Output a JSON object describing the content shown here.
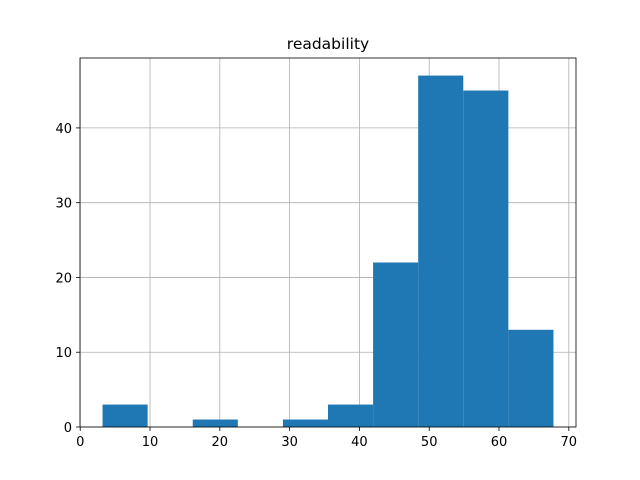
{
  "chart_data": {
    "type": "histogram",
    "title": "readability",
    "bins": [
      3.2,
      9.66,
      16.12,
      22.58,
      29.04,
      35.5,
      41.96,
      48.42,
      54.88,
      61.34,
      67.8
    ],
    "values": [
      3,
      0,
      1,
      0,
      1,
      3,
      22,
      47,
      45,
      13
    ],
    "color": "#1f77b4",
    "xlim": [
      -0.03,
      71.03
    ],
    "xticks": [
      0,
      10,
      20,
      30,
      40,
      50,
      60,
      70
    ],
    "ylim": [
      0,
      49.35
    ],
    "yticks": [
      0,
      10,
      20,
      30,
      40
    ],
    "grid": true
  }
}
